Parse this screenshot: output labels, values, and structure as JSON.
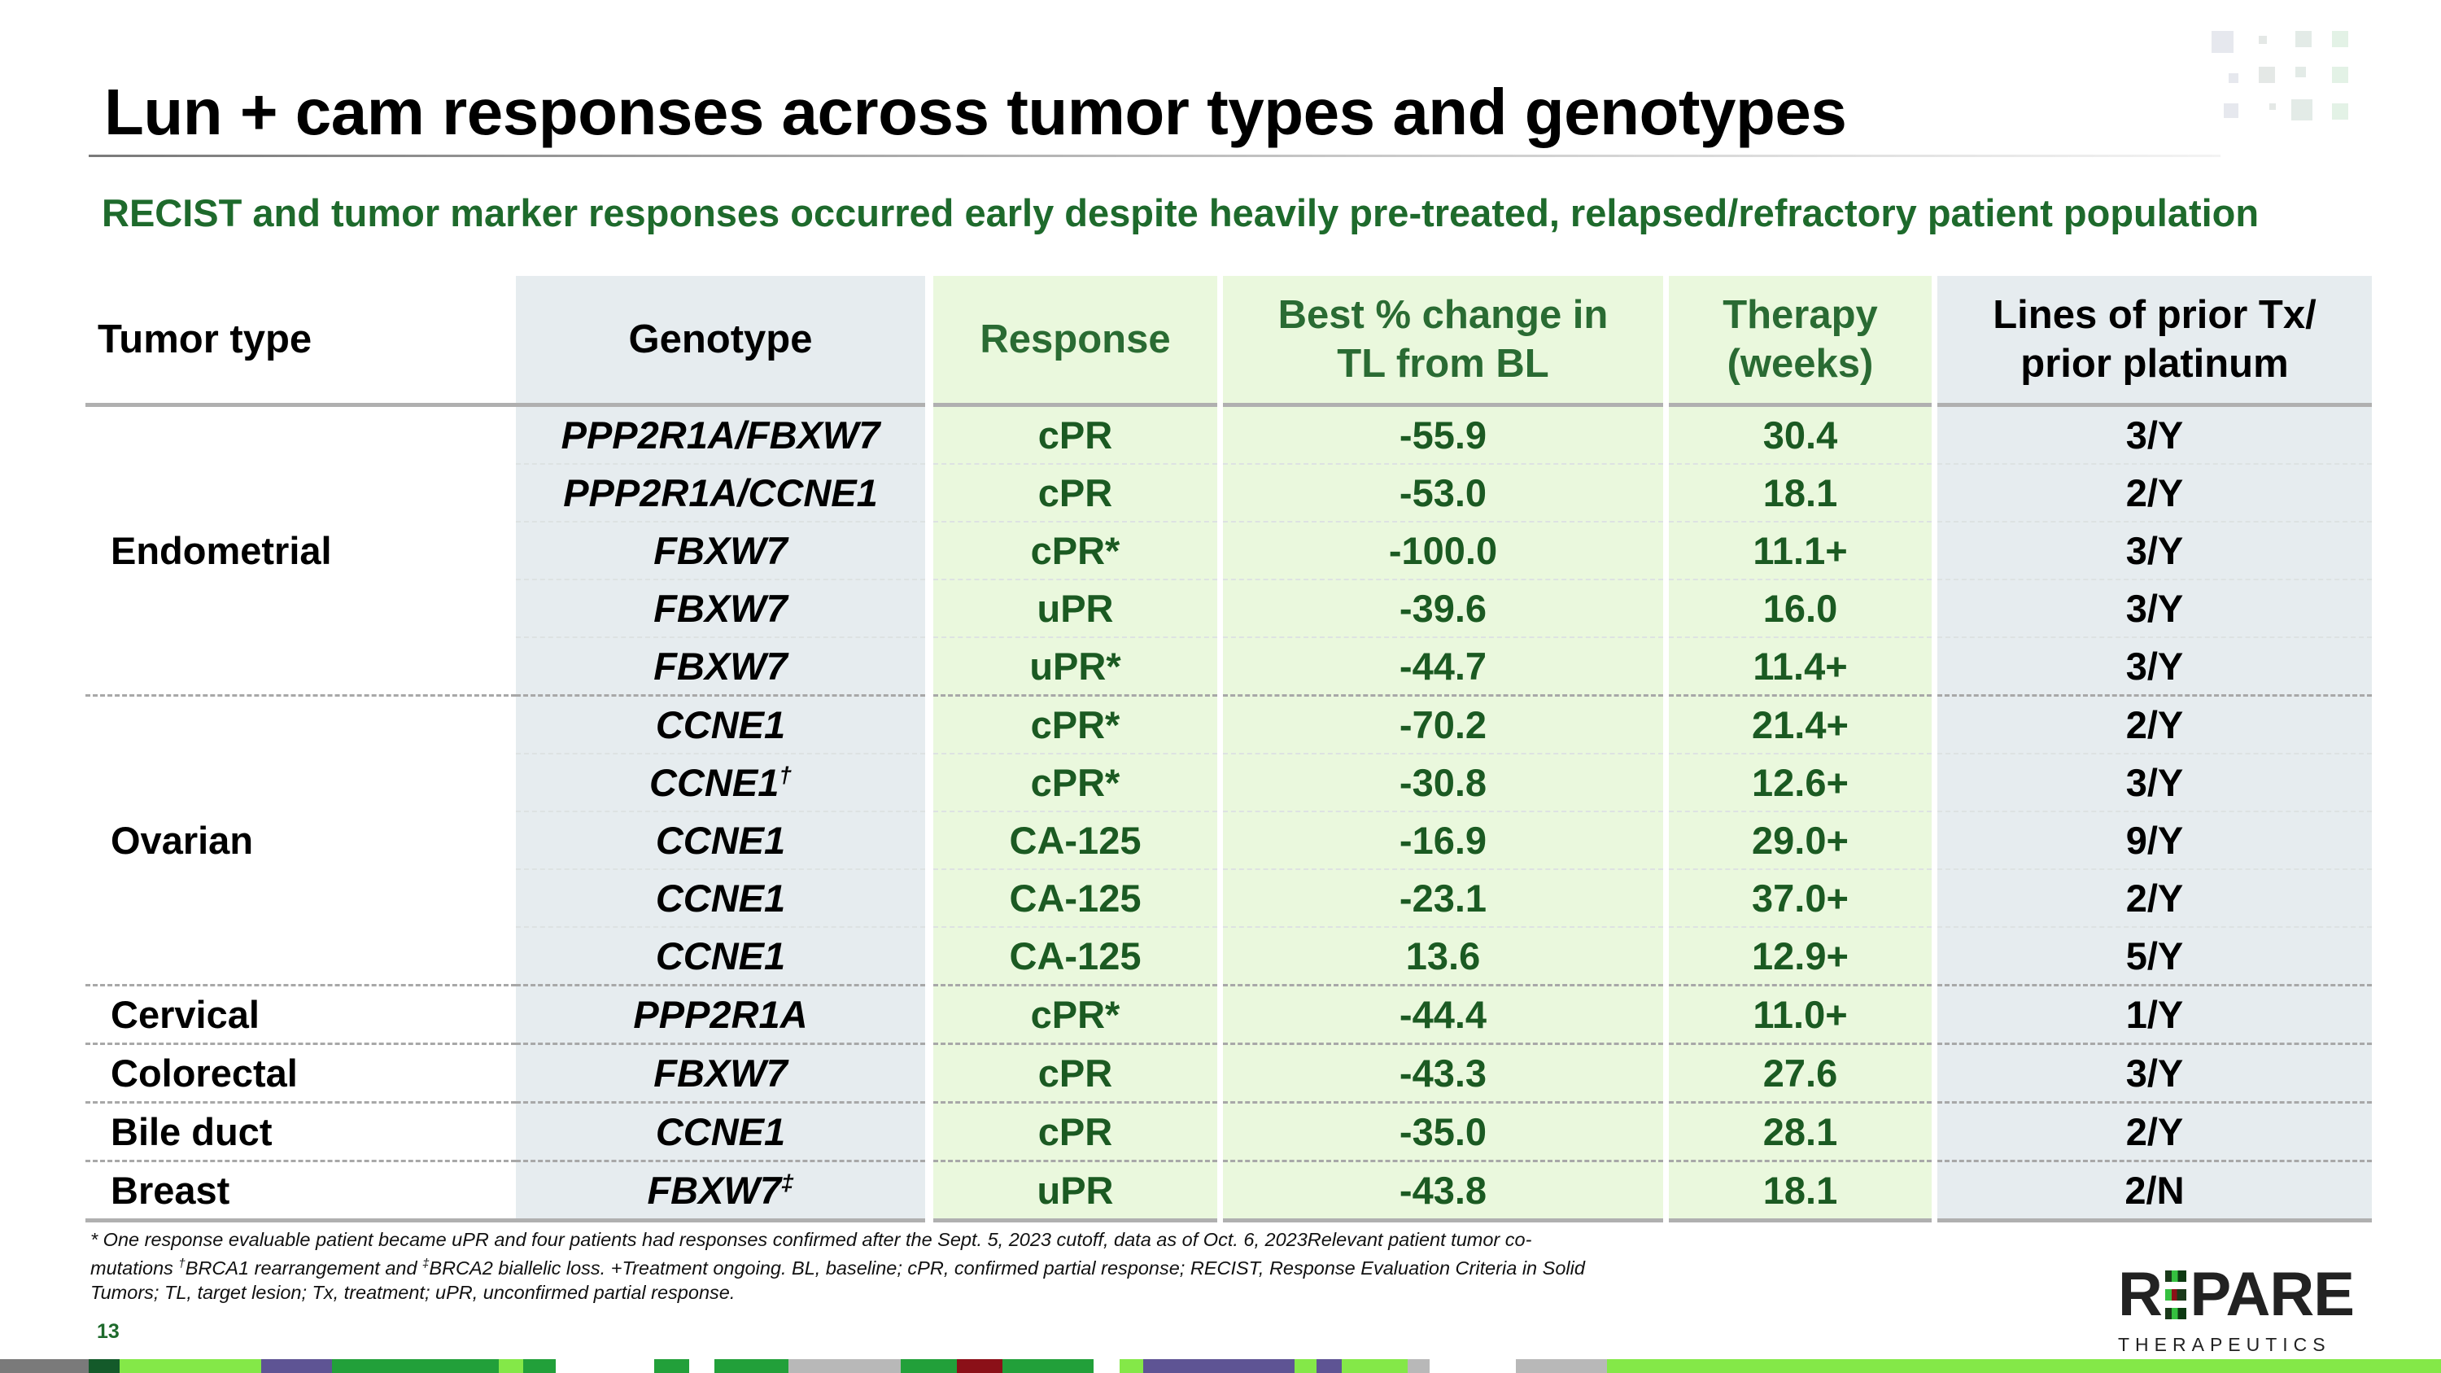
{
  "title": "Lun + cam responses across tumor types and genotypes",
  "subtitle": "RECIST and tumor marker responses occurred early despite heavily pre-treated, relapsed/refractory patient population",
  "table": {
    "headers": {
      "tumor_type": "Tumor type",
      "genotype": "Genotype",
      "response": "Response",
      "best_change_line1": "Best % change in",
      "best_change_line2": "TL from BL",
      "therapy_line1": "Therapy",
      "therapy_line2": "(weeks)",
      "lines_line1": "Lines of prior Tx/",
      "lines_line2": "prior platinum"
    },
    "groups": [
      {
        "tumor_type": "Endometrial",
        "rows": [
          {
            "genotype": "PPP2R1A/FBXW7",
            "sup": "",
            "response": "cPR",
            "best_change": "-55.9",
            "therapy_weeks": "30.4",
            "prior_lines": "3/Y"
          },
          {
            "genotype": "PPP2R1A/CCNE1",
            "sup": "",
            "response": "cPR",
            "best_change": "-53.0",
            "therapy_weeks": "18.1",
            "prior_lines": "2/Y"
          },
          {
            "genotype": "FBXW7",
            "sup": "",
            "response": "cPR*",
            "best_change": "-100.0",
            "therapy_weeks": "11.1+",
            "prior_lines": "3/Y"
          },
          {
            "genotype": "FBXW7",
            "sup": "",
            "response": "uPR",
            "best_change": "-39.6",
            "therapy_weeks": "16.0",
            "prior_lines": "3/Y"
          },
          {
            "genotype": "FBXW7",
            "sup": "",
            "response": "uPR*",
            "best_change": "-44.7",
            "therapy_weeks": "11.4+",
            "prior_lines": "3/Y"
          }
        ]
      },
      {
        "tumor_type": "Ovarian",
        "rows": [
          {
            "genotype": "CCNE1",
            "sup": "",
            "response": "cPR*",
            "best_change": "-70.2",
            "therapy_weeks": "21.4+",
            "prior_lines": "2/Y"
          },
          {
            "genotype": "CCNE1",
            "sup": "†",
            "response": "cPR*",
            "best_change": "-30.8",
            "therapy_weeks": "12.6+",
            "prior_lines": "3/Y"
          },
          {
            "genotype": "CCNE1",
            "sup": "",
            "response": "CA-125",
            "best_change": "-16.9",
            "therapy_weeks": "29.0+",
            "prior_lines": "9/Y"
          },
          {
            "genotype": "CCNE1",
            "sup": "",
            "response": "CA-125",
            "best_change": "-23.1",
            "therapy_weeks": "37.0+",
            "prior_lines": "2/Y"
          },
          {
            "genotype": "CCNE1",
            "sup": "",
            "response": "CA-125",
            "best_change": "13.6",
            "therapy_weeks": "12.9+",
            "prior_lines": "5/Y"
          }
        ]
      },
      {
        "tumor_type": "Cervical",
        "rows": [
          {
            "genotype": "PPP2R1A",
            "sup": "",
            "response": "cPR*",
            "best_change": "-44.4",
            "therapy_weeks": "11.0+",
            "prior_lines": "1/Y"
          }
        ]
      },
      {
        "tumor_type": "Colorectal",
        "rows": [
          {
            "genotype": "FBXW7",
            "sup": "",
            "response": "cPR",
            "best_change": "-43.3",
            "therapy_weeks": "27.6",
            "prior_lines": "3/Y"
          }
        ]
      },
      {
        "tumor_type": "Bile duct",
        "rows": [
          {
            "genotype": "CCNE1",
            "sup": "",
            "response": "cPR",
            "best_change": "-35.0",
            "therapy_weeks": "28.1",
            "prior_lines": "2/Y"
          }
        ]
      },
      {
        "tumor_type": "Breast",
        "rows": [
          {
            "genotype": "FBXW7",
            "sup": "‡",
            "response": "uPR",
            "best_change": "-43.8",
            "therapy_weeks": "18.1",
            "prior_lines": "2/N"
          }
        ]
      }
    ]
  },
  "footnote": {
    "line1": "* One response evaluable patient became uPR and four patients had responses confirmed after the Sept. 5, 2023 cutoff, data as of Oct. 6, 2023Relevant patient tumor co-",
    "line2_a": "mutations ",
    "dagger": "†",
    "line2_b": "BRCA1 rearrangement and ",
    "ddagger": "‡",
    "line2_c": "BRCA2 biallelic loss. +Treatment ongoing. BL, baseline; cPR, confirmed partial response; RECIST, Response Evaluation Criteria in Solid",
    "line3": "Tumors; TL, target lesion; Tx, treatment; uPR, unconfirmed partial response."
  },
  "page_number": "13",
  "logo": {
    "word": "REPARE",
    "left": "R",
    "right": "PARE",
    "sub": "THERAPEUTICS"
  },
  "colors": {
    "accent_green": "#1e6a2c",
    "light_green_bg": "#eaf8dd",
    "grey_bg": "#e6ecef"
  }
}
